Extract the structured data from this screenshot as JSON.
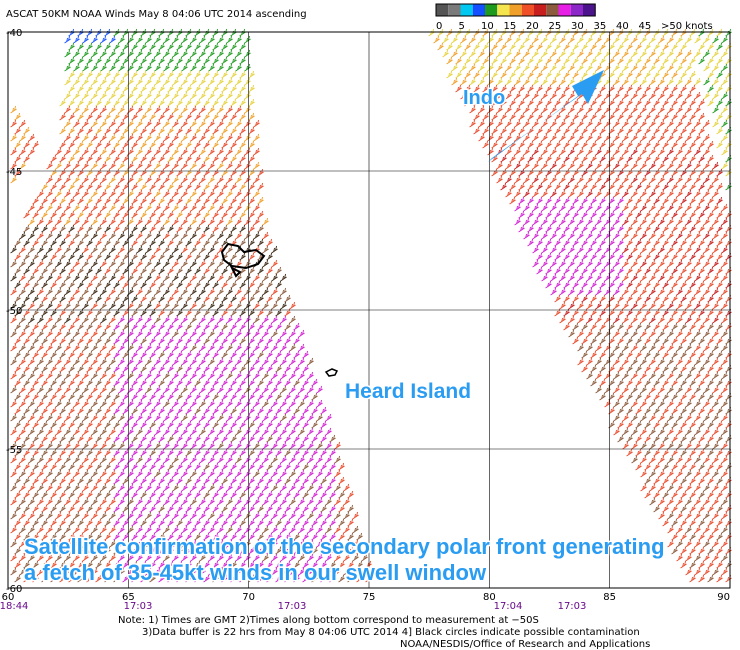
{
  "header": {
    "title": "ASCAT 50KM NOAA Winds May  8 04:06 UTC 2014 ascending"
  },
  "legend": {
    "colors": [
      "#555555",
      "#7a7a7a",
      "#00c8f0",
      "#1450ff",
      "#1e9b1e",
      "#f5e650",
      "#f0a028",
      "#f05028",
      "#c81e1e",
      "#8c5a3c",
      "#e61ee6",
      "#8c28c8",
      "#4b148c"
    ],
    "labels": [
      "0",
      "5",
      "10",
      "15",
      "20",
      "25",
      "30",
      "35",
      "40",
      "45",
      ">50 knots"
    ]
  },
  "axes": {
    "lat_labels": [
      "-40",
      "-45",
      "-50",
      "-55",
      "-60"
    ],
    "lon_labels": [
      "60",
      "65",
      "70",
      "75",
      "80",
      "85",
      "90"
    ]
  },
  "pass_times": [
    "18:44",
    "17:03",
    "17:03",
    "17:04",
    "17:03"
  ],
  "annotations": {
    "indo": "Indo",
    "heard": "Heard Island",
    "caption": [
      "Satellite confirmation of the secondary polar front generating",
      "a fetch of 35-45kt winds in our swell window"
    ]
  },
  "notes": [
    "Note: 1) Times are GMT 2)Times along bottom correspond to measurement at −50S",
    "3)Data buffer is 22 hrs from May  8 04:06 UTC 2014 4] Black circles indicate possible contamination",
    "NOAA/NESDIS/Office of Research and Applications"
  ]
}
